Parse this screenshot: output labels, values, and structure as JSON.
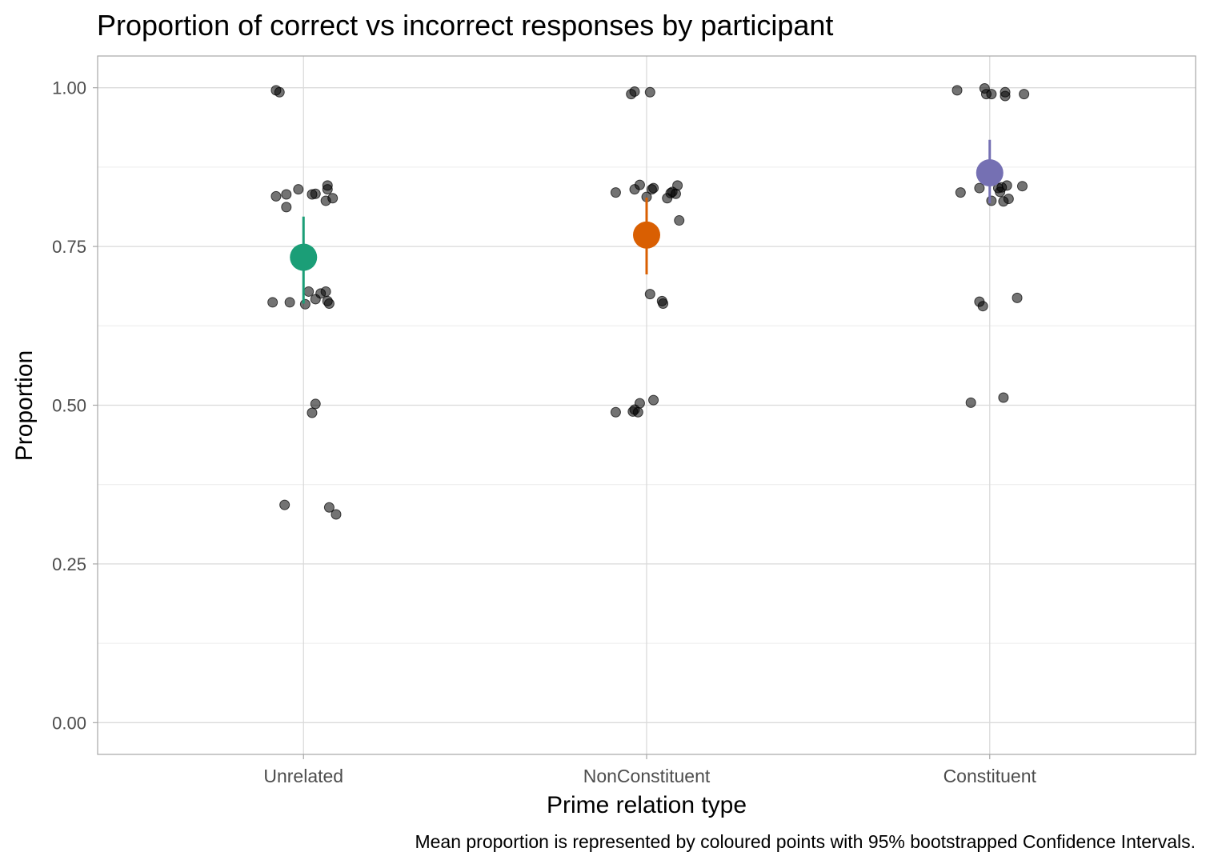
{
  "chart_data": {
    "type": "scatter",
    "title": "Proportion of correct vs incorrect responses by participant",
    "xlabel": "Prime relation type",
    "ylabel": "Proportion",
    "caption": "Mean proportion is represented by coloured points with 95% bootstrapped Confidence Intervals.",
    "categories": [
      "Unrelated",
      "NonConstituent",
      "Constituent"
    ],
    "ylim": [
      -0.05,
      1.05
    ],
    "y_ticks": [
      0,
      0.25,
      0.5,
      0.75,
      1.0
    ],
    "y_tick_labels": [
      "0.00",
      "0.25",
      "0.50",
      "0.75",
      "1.00"
    ],
    "grid": true,
    "point_color": "#000000",
    "point_opacity": 0.55,
    "series": [
      {
        "category": "Unrelated",
        "color": "#1b9e77",
        "mean": 0.733,
        "ci": [
          0.66,
          0.797
        ],
        "points": [
          {
            "dx": -0.08,
            "y": 0.996
          },
          {
            "dx": -0.07,
            "y": 0.993
          },
          {
            "dx": -0.08,
            "y": 0.829
          },
          {
            "dx": -0.05,
            "y": 0.832
          },
          {
            "dx": -0.015,
            "y": 0.84
          },
          {
            "dx": 0.025,
            "y": 0.832
          },
          {
            "dx": 0.035,
            "y": 0.833
          },
          {
            "dx": 0.065,
            "y": 0.822
          },
          {
            "dx": 0.07,
            "y": 0.84
          },
          {
            "dx": 0.07,
            "y": 0.846
          },
          {
            "dx": 0.085,
            "y": 0.826
          },
          {
            "dx": -0.05,
            "y": 0.812
          },
          {
            "dx": -0.09,
            "y": 0.662
          },
          {
            "dx": -0.04,
            "y": 0.662
          },
          {
            "dx": 0.005,
            "y": 0.659
          },
          {
            "dx": 0.015,
            "y": 0.679
          },
          {
            "dx": 0.035,
            "y": 0.667
          },
          {
            "dx": 0.05,
            "y": 0.676
          },
          {
            "dx": 0.065,
            "y": 0.679
          },
          {
            "dx": 0.07,
            "y": 0.664
          },
          {
            "dx": 0.075,
            "y": 0.66
          },
          {
            "dx": 0.035,
            "y": 0.502
          },
          {
            "dx": 0.025,
            "y": 0.488
          },
          {
            "dx": -0.055,
            "y": 0.343
          },
          {
            "dx": 0.075,
            "y": 0.339
          },
          {
            "dx": 0.095,
            "y": 0.328
          }
        ]
      },
      {
        "category": "NonConstituent",
        "color": "#d95f02",
        "mean": 0.768,
        "ci": [
          0.706,
          0.827
        ],
        "points": [
          {
            "dx": -0.045,
            "y": 0.99
          },
          {
            "dx": -0.035,
            "y": 0.994
          },
          {
            "dx": 0.01,
            "y": 0.993
          },
          {
            "dx": -0.09,
            "y": 0.835
          },
          {
            "dx": -0.035,
            "y": 0.84
          },
          {
            "dx": -0.02,
            "y": 0.847
          },
          {
            "dx": 0.0,
            "y": 0.828
          },
          {
            "dx": 0.015,
            "y": 0.84
          },
          {
            "dx": 0.02,
            "y": 0.842
          },
          {
            "dx": 0.06,
            "y": 0.826
          },
          {
            "dx": 0.07,
            "y": 0.834
          },
          {
            "dx": 0.085,
            "y": 0.833
          },
          {
            "dx": 0.09,
            "y": 0.846
          },
          {
            "dx": 0.095,
            "y": 0.791
          },
          {
            "dx": 0.075,
            "y": 0.836
          },
          {
            "dx": 0.01,
            "y": 0.675
          },
          {
            "dx": 0.045,
            "y": 0.664
          },
          {
            "dx": 0.048,
            "y": 0.66
          },
          {
            "dx": -0.09,
            "y": 0.489
          },
          {
            "dx": -0.04,
            "y": 0.49
          },
          {
            "dx": -0.035,
            "y": 0.493
          },
          {
            "dx": -0.025,
            "y": 0.489
          },
          {
            "dx": -0.02,
            "y": 0.503
          },
          {
            "dx": 0.02,
            "y": 0.508
          }
        ]
      },
      {
        "category": "Constituent",
        "color": "#7570b3",
        "mean": 0.866,
        "ci": [
          0.818,
          0.918
        ],
        "points": [
          {
            "dx": -0.095,
            "y": 0.996
          },
          {
            "dx": -0.015,
            "y": 0.999
          },
          {
            "dx": -0.01,
            "y": 0.99
          },
          {
            "dx": 0.005,
            "y": 0.99
          },
          {
            "dx": 0.045,
            "y": 0.993
          },
          {
            "dx": 0.045,
            "y": 0.987
          },
          {
            "dx": 0.1,
            "y": 0.99
          },
          {
            "dx": -0.085,
            "y": 0.835
          },
          {
            "dx": -0.03,
            "y": 0.842
          },
          {
            "dx": 0.005,
            "y": 0.822
          },
          {
            "dx": 0.025,
            "y": 0.842
          },
          {
            "dx": 0.03,
            "y": 0.836
          },
          {
            "dx": 0.035,
            "y": 0.843
          },
          {
            "dx": 0.04,
            "y": 0.821
          },
          {
            "dx": 0.05,
            "y": 0.846
          },
          {
            "dx": 0.055,
            "y": 0.825
          },
          {
            "dx": 0.095,
            "y": 0.845
          },
          {
            "dx": -0.03,
            "y": 0.663
          },
          {
            "dx": -0.02,
            "y": 0.656
          },
          {
            "dx": 0.08,
            "y": 0.669
          },
          {
            "dx": -0.055,
            "y": 0.504
          },
          {
            "dx": 0.04,
            "y": 0.512
          }
        ]
      }
    ]
  }
}
